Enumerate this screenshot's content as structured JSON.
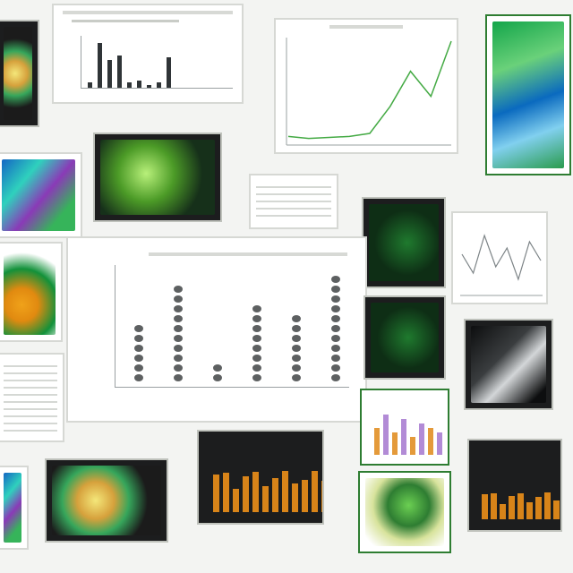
{
  "colors": {
    "background": "#f3f4f2",
    "dark_tile": "#1c1d1e",
    "accent_green": "#2e7d32",
    "line_green": "#44aa44",
    "bar_dark": "#2f3437",
    "bar_orange": "#d88419",
    "dot_gray": "#5d6061"
  },
  "collage": {
    "top_bar_chart": {
      "values": [
        0.1,
        0.9,
        0.55,
        0.65,
        0.1,
        0.15,
        0.05,
        0.1,
        0.6
      ]
    },
    "top_line_chart": {
      "values": [
        0.05,
        0.03,
        0.04,
        0.05,
        0.08,
        0.35,
        0.7,
        0.45,
        1.0
      ]
    },
    "center_dot_chart": {
      "columns": [
        6,
        10,
        2,
        8,
        7,
        11
      ]
    },
    "small_line_chart": {
      "values": [
        0.6,
        0.3,
        0.9,
        0.4,
        0.7,
        0.2,
        0.8,
        0.5
      ]
    },
    "purple_bar_chart": {
      "values": [
        0.6,
        0.9,
        0.5,
        0.8,
        0.4,
        0.7,
        0.6,
        0.5
      ]
    }
  }
}
